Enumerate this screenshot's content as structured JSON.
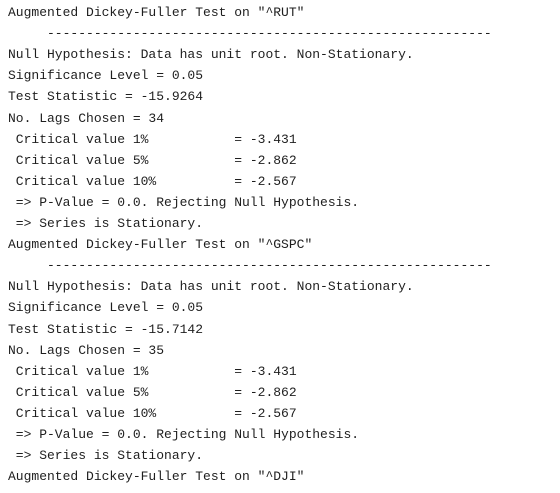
{
  "lines": [
    "Augmented Dickey-Fuller Test on \"^RUT\"",
    "     ---------------------------------------------------------",
    "Null Hypothesis: Data has unit root. Non-Stationary.",
    "Significance Level = 0.05",
    "Test Statistic = -15.9264",
    "No. Lags Chosen = 34",
    " Critical value 1%           = -3.431",
    " Critical value 5%           = -2.862",
    " Critical value 10%          = -2.567",
    " => P-Value = 0.0. Rejecting Null Hypothesis.",
    " => Series is Stationary.",
    "Augmented Dickey-Fuller Test on \"^GSPC\"",
    "     ---------------------------------------------------------",
    "Null Hypothesis: Data has unit root. Non-Stationary.",
    "Significance Level = 0.05",
    "Test Statistic = -15.7142",
    "No. Lags Chosen = 35",
    " Critical value 1%           = -3.431",
    " Critical value 5%           = -2.862",
    " Critical value 10%          = -2.567",
    " => P-Value = 0.0. Rejecting Null Hypothesis.",
    " => Series is Stationary.",
    "Augmented Dickey-Fuller Test on \"^DJI\""
  ]
}
